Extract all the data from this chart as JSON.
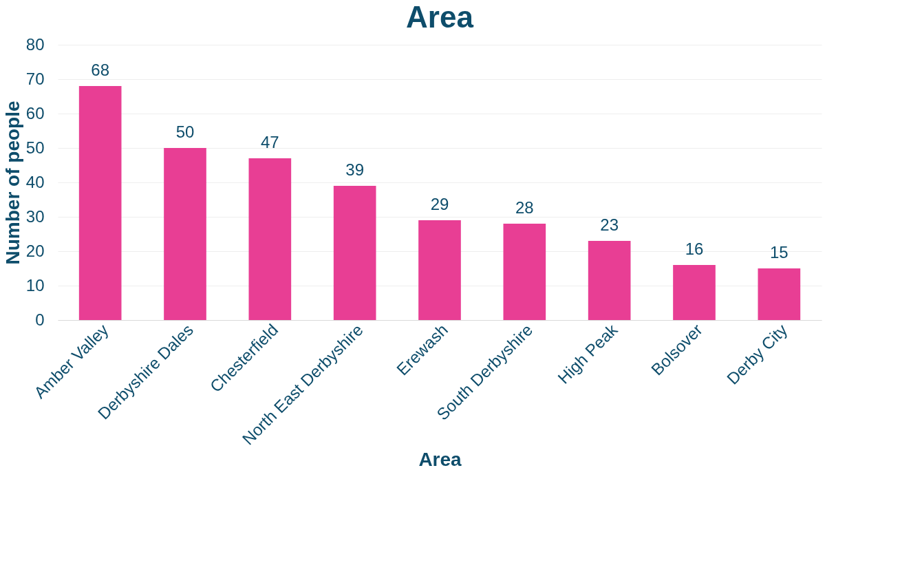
{
  "chart_data": {
    "type": "bar",
    "title": "Area",
    "xlabel": "Area",
    "ylabel": "Number of people",
    "categories": [
      "Amber Valley",
      "Derbyshire Dales",
      "Chesterfield",
      "North East Derbyshire",
      "Erewash",
      "South Derbyshire",
      "High Peak",
      "Bolsover",
      "Derby City"
    ],
    "values": [
      68,
      50,
      47,
      39,
      29,
      28,
      23,
      16,
      15
    ],
    "color": "#e83e94",
    "ylim": [
      0,
      80
    ],
    "yticks": [
      0,
      10,
      20,
      30,
      40,
      50,
      60,
      70,
      80
    ],
    "grid": "y",
    "data_labels": true
  }
}
